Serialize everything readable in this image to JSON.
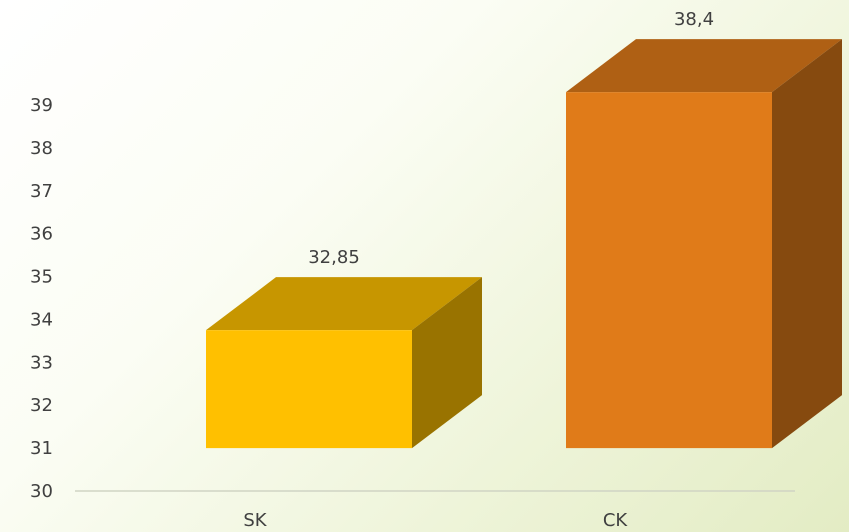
{
  "chart_data": {
    "type": "bar",
    "style": "3d-column",
    "categories": [
      "SK",
      "CK"
    ],
    "values": [
      32.85,
      38.4
    ],
    "value_labels": [
      "32,85",
      "38,4"
    ],
    "colors": [
      "#ffc000",
      "#e07b19"
    ],
    "title": "",
    "xlabel": "",
    "ylabel": "",
    "ylim": [
      30,
      39
    ],
    "yticks": [
      "30",
      "31",
      "32",
      "33",
      "34",
      "35",
      "36",
      "37",
      "38",
      "39"
    ],
    "grid": false,
    "legend": "none"
  }
}
